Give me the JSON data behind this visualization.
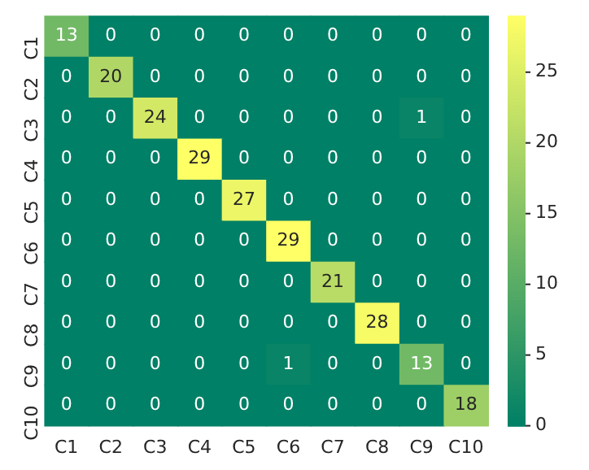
{
  "chart_data": {
    "type": "heatmap",
    "categories": [
      "C1",
      "C2",
      "C3",
      "C4",
      "C5",
      "C6",
      "C7",
      "C8",
      "C9",
      "C10"
    ],
    "y_categories": [
      "C1",
      "C2",
      "C3",
      "C4",
      "C5",
      "C6",
      "C7",
      "C8",
      "C9",
      "C10"
    ],
    "cells": [
      [
        13,
        0,
        0,
        0,
        0,
        0,
        0,
        0,
        0,
        0
      ],
      [
        0,
        20,
        0,
        0,
        0,
        0,
        0,
        0,
        0,
        0
      ],
      [
        0,
        0,
        24,
        0,
        0,
        0,
        0,
        0,
        1,
        0
      ],
      [
        0,
        0,
        0,
        29,
        0,
        0,
        0,
        0,
        0,
        0
      ],
      [
        0,
        0,
        0,
        0,
        27,
        0,
        0,
        0,
        0,
        0
      ],
      [
        0,
        0,
        0,
        0,
        0,
        29,
        0,
        0,
        0,
        0
      ],
      [
        0,
        0,
        0,
        0,
        0,
        0,
        21,
        0,
        0,
        0
      ],
      [
        0,
        0,
        0,
        0,
        0,
        0,
        0,
        28,
        0,
        0
      ],
      [
        0,
        0,
        0,
        0,
        0,
        1,
        0,
        0,
        13,
        0
      ],
      [
        0,
        0,
        0,
        0,
        0,
        0,
        0,
        0,
        0,
        18
      ]
    ],
    "clim": [
      0,
      29
    ],
    "cticks": [
      0,
      5,
      10,
      15,
      20,
      25
    ],
    "data_labels": true
  }
}
